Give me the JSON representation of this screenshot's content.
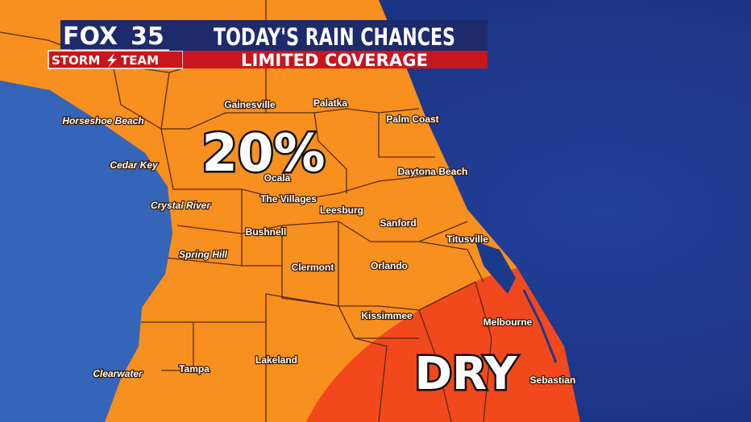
{
  "header": {
    "logo": "FOX",
    "logo_number": "35",
    "brand_left": "STORM",
    "brand_right": "TEAM",
    "title": "TODAY'S RAIN CHANCES",
    "subtitle": "LIMITED COVERAGE"
  },
  "zones": [
    {
      "label": "20%"
    },
    {
      "label": "DRY"
    }
  ],
  "cities": [
    {
      "label": "Gainesville"
    },
    {
      "label": "Palatka"
    },
    {
      "label": "Horseshoe Beach"
    },
    {
      "label": "Palm Coast"
    },
    {
      "label": "Cedar Key"
    },
    {
      "label": "Ocala"
    },
    {
      "label": "Daytona Beach"
    },
    {
      "label": "The Villages"
    },
    {
      "label": "Crystal River"
    },
    {
      "label": "Leesburg"
    },
    {
      "label": "Sanford"
    },
    {
      "label": "Bushnell"
    },
    {
      "label": "Titusville"
    },
    {
      "label": "Spring Hill"
    },
    {
      "label": "Orlando"
    },
    {
      "label": "Clermont"
    },
    {
      "label": "Kissimmee"
    },
    {
      "label": "Melbourne"
    },
    {
      "label": "Lakeland"
    },
    {
      "label": "Tampa"
    },
    {
      "label": "Clearwater"
    },
    {
      "label": "Sebastian"
    }
  ]
}
